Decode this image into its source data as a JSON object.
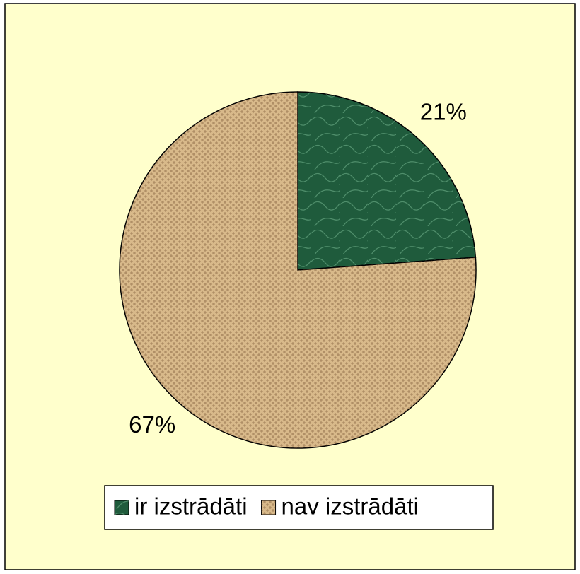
{
  "chart_data": {
    "type": "pie",
    "categories": [
      "ir izstrādāti",
      "nav izstrādāti"
    ],
    "values": [
      21,
      67
    ],
    "value_labels": [
      "21%",
      "67%"
    ],
    "colors": [
      "#1f5b3c",
      "#d8b98a"
    ],
    "legend": "bottom"
  }
}
